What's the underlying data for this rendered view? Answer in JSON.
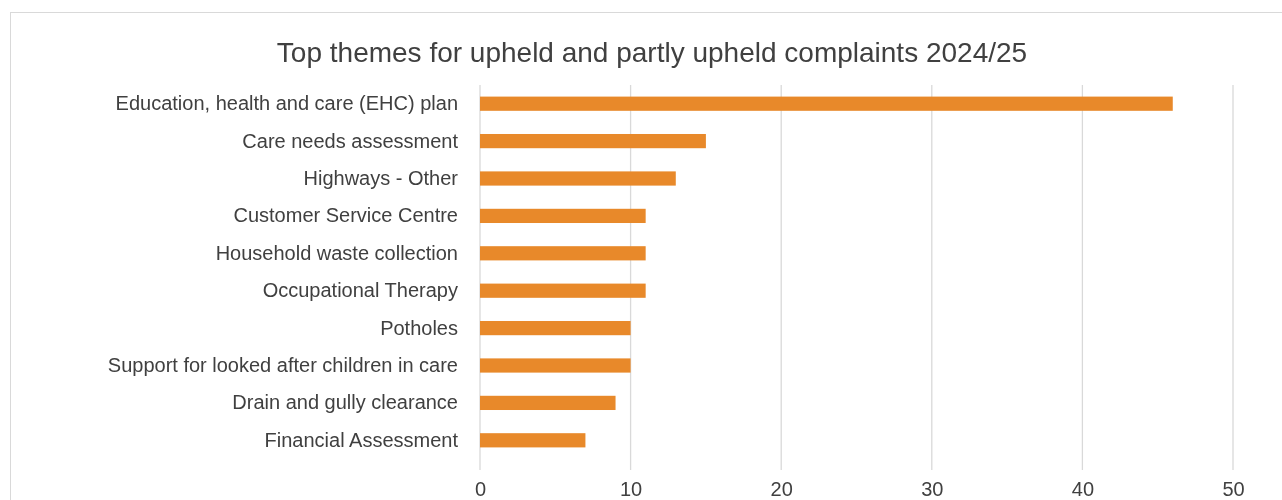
{
  "chart_data": {
    "type": "bar",
    "orientation": "horizontal",
    "title": "Top themes for upheld and partly upheld complaints 2024/25",
    "categories": [
      "Education, health and care (EHC) plan",
      "Care needs assessment",
      "Highways - Other",
      "Customer Service Centre",
      "Household waste collection",
      "Occupational Therapy",
      "Potholes",
      "Support for looked after children in care",
      "Drain and gully clearance",
      "Financial Assessment"
    ],
    "values": [
      46,
      15,
      13,
      11,
      11,
      11,
      10,
      10,
      9,
      7
    ],
    "color": "#e8892a",
    "xlim": [
      0,
      50
    ],
    "xticks": [
      0,
      10,
      20,
      30,
      40,
      50
    ],
    "grid": "x"
  }
}
